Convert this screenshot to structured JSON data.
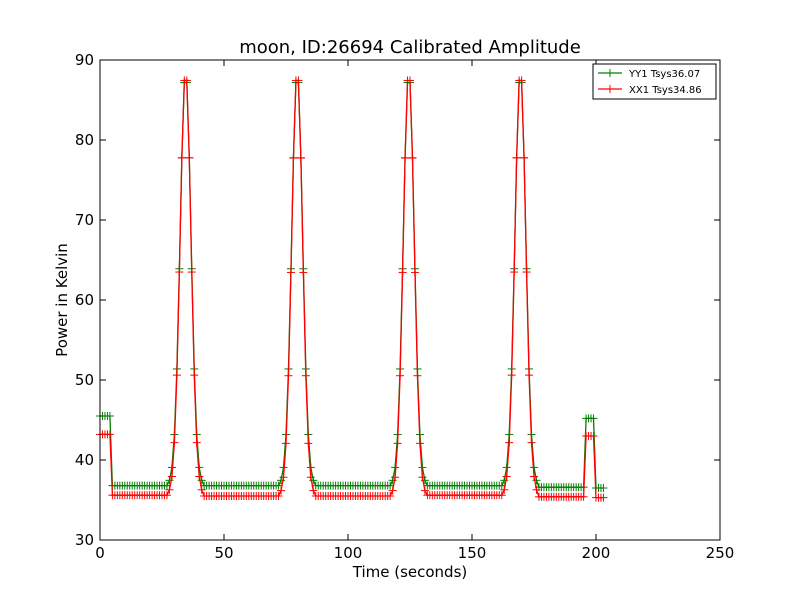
{
  "chart_data": {
    "type": "line",
    "title": "moon, ID:26694 Calibrated Amplitude",
    "xlabel": "Time (seconds)",
    "ylabel": "Power in Kelvin",
    "xlim": [
      0,
      250
    ],
    "ylim": [
      30,
      90
    ],
    "xticks": [
      "0",
      "50",
      "100",
      "150",
      "200",
      "250"
    ],
    "yticks": [
      "30",
      "40",
      "50",
      "60",
      "70",
      "80",
      "90"
    ],
    "grid": false,
    "legend_position": "top-right",
    "series": [
      {
        "name": "YY1 Tsys36.07",
        "color": "#008000",
        "baseline_segments": [
          {
            "x_start": 0,
            "x_end": 4,
            "y": 45.5
          },
          {
            "x_start": 5,
            "x_end": 28,
            "y": 36.8
          },
          {
            "x_start": 40,
            "x_end": 73,
            "y": 36.8
          },
          {
            "x_start": 85,
            "x_end": 118,
            "y": 36.8
          },
          {
            "x_start": 130,
            "x_end": 163,
            "y": 36.8
          },
          {
            "x_start": 175,
            "x_end": 195,
            "y": 36.6
          },
          {
            "x_start": 195,
            "x_end": 199,
            "y": 45.2
          },
          {
            "x_start": 199,
            "x_end": 203,
            "y": 36.5
          }
        ],
        "peaks": [
          {
            "x": 34.5,
            "y": 88.5
          },
          {
            "x": 79.5,
            "y": 88.5
          },
          {
            "x": 124.5,
            "y": 88.5
          },
          {
            "x": 169.5,
            "y": 88.5
          }
        ]
      },
      {
        "name": "XX1 Tsys34.86",
        "color": "#ff0000",
        "baseline_segments": [
          {
            "x_start": 0,
            "x_end": 4,
            "y": 43.2
          },
          {
            "x_start": 5,
            "x_end": 28,
            "y": 35.6
          },
          {
            "x_start": 40,
            "x_end": 73,
            "y": 35.5
          },
          {
            "x_start": 85,
            "x_end": 118,
            "y": 35.5
          },
          {
            "x_start": 130,
            "x_end": 163,
            "y": 35.6
          },
          {
            "x_start": 175,
            "x_end": 195,
            "y": 35.4
          },
          {
            "x_start": 195,
            "x_end": 199,
            "y": 43.0
          },
          {
            "x_start": 199,
            "x_end": 203,
            "y": 35.3
          }
        ],
        "peaks": [
          {
            "x": 34.5,
            "y": 88.8
          },
          {
            "x": 79.5,
            "y": 88.8
          },
          {
            "x": 124.5,
            "y": 88.8
          },
          {
            "x": 169.5,
            "y": 88.8
          }
        ]
      }
    ]
  }
}
